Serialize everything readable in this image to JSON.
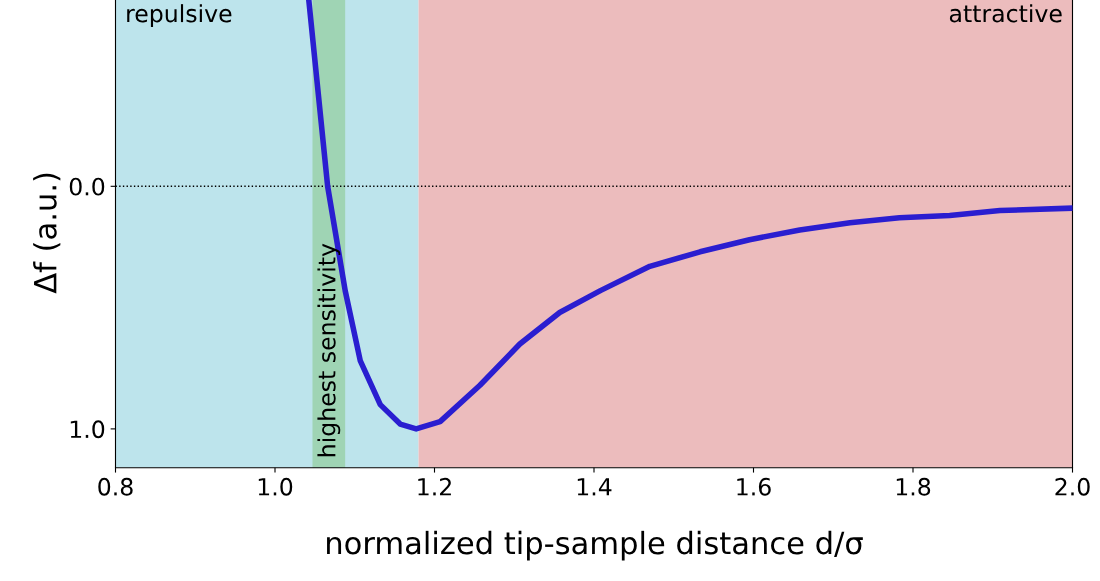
{
  "chart_data": {
    "type": "line",
    "xlabel": "normalized tip-sample distance d/σ",
    "ylabel": "Δf (a.u.)",
    "xlim": [
      0.8,
      2.0
    ],
    "xticks": [
      0.8,
      {
        "value": 1.0,
        "label": "1.0"
      },
      1.2,
      1.4,
      1.6,
      1.8,
      {
        "value": 2.0,
        "label": "2.0"
      }
    ],
    "ylim": [
      1.16,
      -0.78
    ],
    "yticks": [
      {
        "value": 0.0,
        "label": "0.0"
      },
      {
        "value": 1.0,
        "label": "1.0"
      }
    ],
    "grid": false,
    "series": [
      {
        "color": "#2a1ed0",
        "x": [
          1.042,
          1.066,
          1.088,
          1.107,
          1.132,
          1.157,
          1.177,
          1.207,
          1.257,
          1.307,
          1.357,
          1.408,
          1.47,
          1.533,
          1.595,
          1.658,
          1.721,
          1.783,
          1.846,
          1.909,
          2.0
        ],
        "values": [
          -0.78,
          0.0,
          0.43,
          0.72,
          0.9,
          0.98,
          1.0,
          0.97,
          0.82,
          0.65,
          0.52,
          0.43,
          0.33,
          0.27,
          0.22,
          0.18,
          0.15,
          0.13,
          0.12,
          0.1,
          0.09
        ]
      }
    ],
    "bands": [
      {
        "axis": "x",
        "from": 0.8,
        "to": 1.18,
        "label": "repulsive",
        "color": "#bde4ec"
      },
      {
        "axis": "x",
        "from": 1.18,
        "to": 2.0,
        "label": "attractive",
        "color": "#ecbcbd"
      },
      {
        "axis": "x",
        "from": 1.047,
        "to": 1.088,
        "label": "highest sensitivity",
        "color": "#9fd4b4"
      }
    ],
    "ref_lines": [
      {
        "axis": "y",
        "value": 0.0,
        "color": "#000000",
        "line_style": "dotted"
      }
    ]
  }
}
